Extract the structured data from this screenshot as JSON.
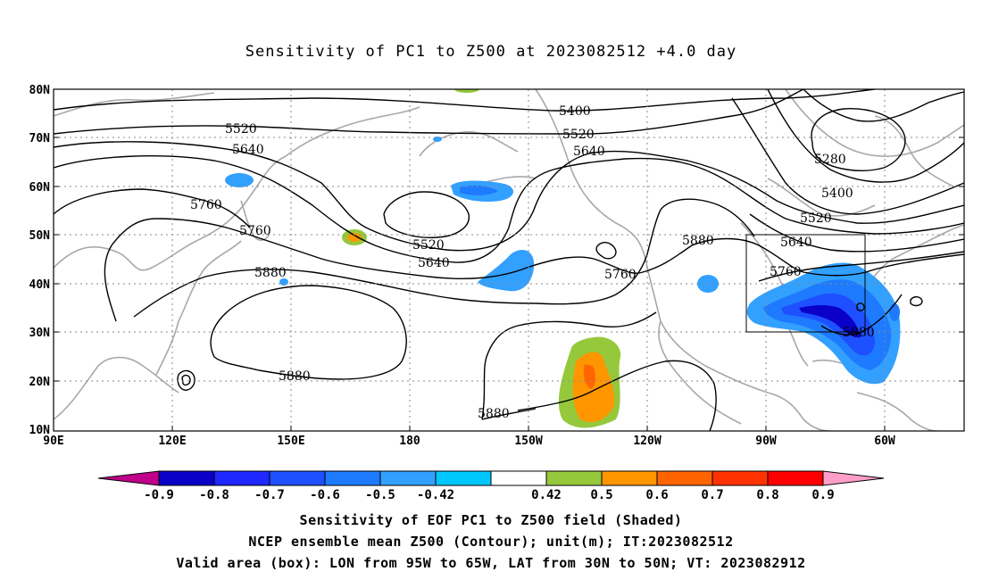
{
  "title": "Sensitivity of PC1 to Z500 at 2023082512 +4.0 day",
  "axes": {
    "lat_labels": [
      "80N",
      "70N",
      "60N",
      "50N",
      "40N",
      "30N",
      "20N",
      "10N"
    ],
    "lon_labels": [
      "90E",
      "120E",
      "150E",
      "180",
      "150W",
      "120W",
      "90W",
      "60W"
    ]
  },
  "contour_labels": [
    "5400",
    "5520",
    "5520",
    "5640",
    "5640",
    "5280",
    "5400",
    "5520",
    "5760",
    "5760",
    "5640",
    "5520",
    "5640",
    "5880",
    "5640",
    "5760",
    "5880",
    "5760",
    "5880",
    "5880",
    "5880"
  ],
  "colorbar": {
    "labels": [
      "-0.9",
      "-0.8",
      "-0.7",
      "-0.6",
      "-0.5",
      "-0.42",
      "0.42",
      "0.5",
      "0.6",
      "0.7",
      "0.8",
      "0.9"
    ],
    "colors": [
      "#c0008a",
      "#0a00c8",
      "#1e28ff",
      "#1e50ff",
      "#1e7aff",
      "#32a0ff",
      "#00c8ff",
      "#ffffff",
      "#96c83c",
      "#ff9600",
      "#ff6400",
      "#ff3200",
      "#ff0000",
      "#ff9ec8"
    ]
  },
  "captions": {
    "line1": "Sensitivity of EOF PC1 to Z500 field (Shaded)",
    "line2": "NCEP ensemble mean Z500 (Contour); unit(m); IT:2023082512",
    "line3": "Valid area (box): LON from 95W to 65W, LAT from 30N to 50N; VT: 2023082912"
  }
}
